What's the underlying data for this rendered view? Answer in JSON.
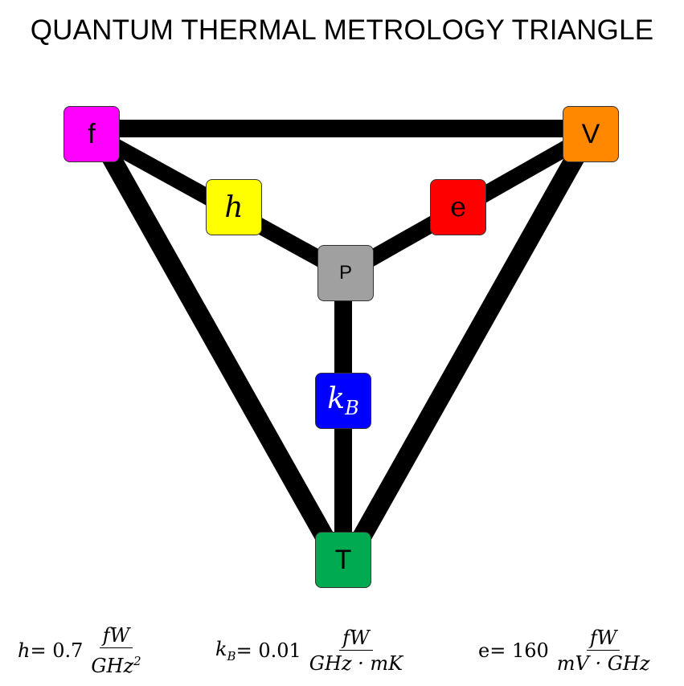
{
  "title": "QUANTUM THERMAL METROLOGY TRIANGLE",
  "nodes": {
    "f": {
      "label": "f",
      "color": "#FF00FF",
      "text_color": "#000000"
    },
    "V": {
      "label": "V",
      "color": "#FF8800",
      "text_color": "#000000"
    },
    "h": {
      "label": "h",
      "color": "#FFFF00",
      "text_color": "#000000"
    },
    "e": {
      "label": "e",
      "color": "#FF0000",
      "text_color": "#000000"
    },
    "P": {
      "label": "P",
      "color": "#A0A0A0",
      "text_color": "#000000"
    },
    "kB": {
      "label": "k",
      "sub": "B",
      "color": "#0000FF",
      "text_color": "#FFFFFF"
    },
    "T": {
      "label": "T",
      "color": "#00AA50",
      "text_color": "#000000"
    }
  },
  "edges": [
    [
      "f",
      "V"
    ],
    [
      "f",
      "T"
    ],
    [
      "V",
      "T"
    ],
    [
      "f",
      "P"
    ],
    [
      "V",
      "P"
    ],
    [
      "P",
      "T"
    ]
  ],
  "formulas": {
    "h": {
      "lhs": "h",
      "eq": " = 0.7",
      "num": "fW",
      "den": "GHz",
      "den_sup": "2"
    },
    "kB": {
      "lhs": "k",
      "lhs_sub": "B",
      "eq": " = 0.01",
      "num": "fW",
      "den": "GHz · mK"
    },
    "e": {
      "lhs": "e",
      "eq": " = 160",
      "num": "fW",
      "den": "mV · GHz"
    }
  }
}
